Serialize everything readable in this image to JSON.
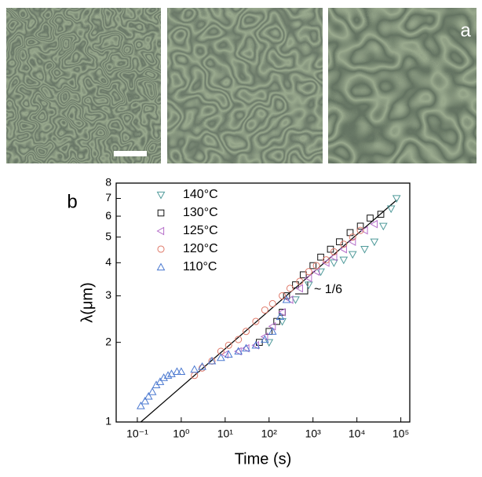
{
  "panel_labels": {
    "a": "a",
    "b": "b"
  },
  "chart_data": {
    "type": "scatter",
    "log_x": true,
    "log_y": true,
    "xlabel": "Time (s)",
    "ylabel": "λ(μm)",
    "xlim": [
      0.033,
      160000
    ],
    "ylim": [
      1,
      8
    ],
    "xticks": [
      {
        "value": 0.1,
        "label": "10⁻¹"
      },
      {
        "value": 1,
        "label": "10⁰"
      },
      {
        "value": 10,
        "label": "10¹"
      },
      {
        "value": 100,
        "label": "10²"
      },
      {
        "value": 1000,
        "label": "10³"
      },
      {
        "value": 10000,
        "label": "10⁴"
      },
      {
        "value": 100000,
        "label": "10⁵"
      }
    ],
    "yticks": [
      1,
      2,
      3,
      4,
      5,
      6,
      7,
      8
    ],
    "legend": "upper left",
    "series": [
      {
        "name": "140°C",
        "color": "#4f9a9a",
        "marker": "triangle-down",
        "x": [
          100,
          200,
          400,
          800,
          1500,
          3000,
          5000,
          8000,
          15000,
          25000,
          40000,
          60000,
          80000
        ],
        "values": [
          2.0,
          2.4,
          2.9,
          3.3,
          3.7,
          4.0,
          4.1,
          4.3,
          4.5,
          4.8,
          5.5,
          6.4,
          7.0
        ]
      },
      {
        "name": "130°C",
        "color": "#111111",
        "marker": "square",
        "x": [
          60,
          100,
          150,
          200,
          250,
          400,
          600,
          1000,
          1500,
          2500,
          4000,
          7000,
          12000,
          20000,
          35000
        ],
        "values": [
          2.0,
          2.2,
          2.4,
          2.6,
          3.0,
          3.3,
          3.6,
          3.9,
          4.2,
          4.5,
          4.8,
          5.2,
          5.5,
          5.9,
          6.1
        ]
      },
      {
        "name": "125°C",
        "color": "#b46cc8",
        "marker": "triangle-left",
        "x": [
          10,
          20,
          30,
          50,
          80,
          120,
          200,
          300,
          500,
          800,
          1200,
          2000,
          3000,
          5000,
          8000,
          15000,
          25000
        ],
        "values": [
          1.8,
          1.85,
          1.9,
          1.95,
          2.1,
          2.3,
          2.6,
          2.9,
          3.2,
          3.5,
          3.7,
          4.0,
          4.2,
          4.5,
          4.8,
          5.3,
          5.6
        ]
      },
      {
        "name": "120°C",
        "color": "#e07a6a",
        "marker": "circle",
        "x": [
          2,
          3,
          5,
          8,
          12,
          20,
          30,
          50,
          80,
          120,
          200,
          300,
          500,
          800,
          1200,
          2000,
          3000,
          5000,
          8000,
          12000
        ],
        "values": [
          1.5,
          1.6,
          1.7,
          1.85,
          1.95,
          2.05,
          2.2,
          2.4,
          2.65,
          2.8,
          3.0,
          3.2,
          3.4,
          3.7,
          3.9,
          4.1,
          4.4,
          4.7,
          5.0,
          5.3
        ]
      },
      {
        "name": "110°C",
        "color": "#4a78d0",
        "marker": "triangle-up",
        "x": [
          0.12,
          0.15,
          0.18,
          0.22,
          0.27,
          0.33,
          0.4,
          0.5,
          0.6,
          0.8,
          1,
          2,
          3,
          5,
          8,
          12,
          20,
          30,
          50,
          80,
          120,
          180,
          250
        ],
        "values": [
          1.15,
          1.2,
          1.25,
          1.3,
          1.38,
          1.42,
          1.47,
          1.5,
          1.52,
          1.55,
          1.55,
          1.58,
          1.62,
          1.7,
          1.75,
          1.8,
          1.85,
          1.9,
          1.95,
          2.05,
          2.2,
          2.5,
          2.9
        ]
      }
    ],
    "fit": {
      "x": [
        0.12,
        80000
      ],
      "values": [
        1.0,
        6.9
      ]
    },
    "annotation": "~ 1/6"
  }
}
